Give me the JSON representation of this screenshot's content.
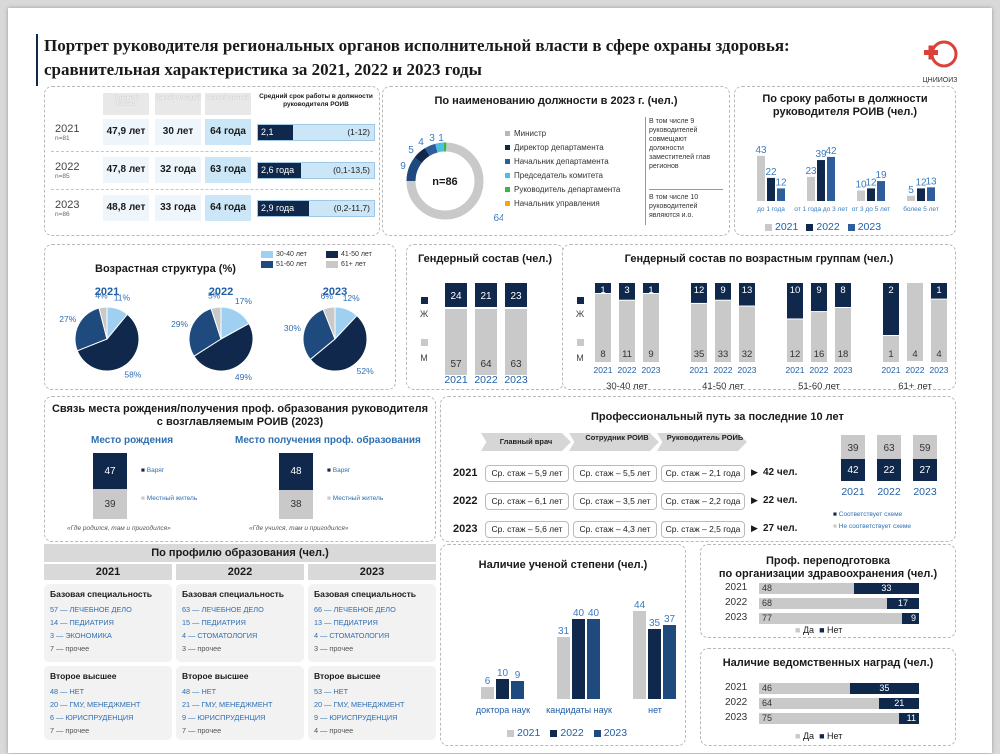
{
  "header": {
    "title_line1": "Портрет руководителя региональных органов исполнительной власти в сфере охраны здоровья:",
    "title_line2": "сравнительная характеристика за 2021, 2022 и 2023 годы",
    "logo_text": "ЦНИИОИЗ"
  },
  "summary": {
    "col_headers": [
      "Средний возраст",
      "Самый молодой",
      "Самый зрелый",
      "Средний срок работы в должности руководителя РОИВ"
    ],
    "rows": [
      {
        "year": "2021",
        "n": "n=81",
        "avg": "47,9 лет",
        "young": "30 лет",
        "old": "64 года",
        "tenure": "2,1 года",
        "range": "(1-12)",
        "tenure_frac": 0.3
      },
      {
        "year": "2022",
        "n": "n=85",
        "avg": "47,8 лет",
        "young": "32 года",
        "old": "63 года",
        "tenure": "2,6 года",
        "range": "(0,1-13,5)",
        "tenure_frac": 0.37
      },
      {
        "year": "2023",
        "n": "n=86",
        "avg": "48,8 лет",
        "young": "33 года",
        "old": "64 года",
        "tenure": "2,9 года",
        "range": "(0,2-11,7)",
        "tenure_frac": 0.44
      }
    ]
  },
  "position": {
    "title": "По наименованию должности в 2023 г. (чел.)",
    "center": "n=86",
    "labels": [
      "1",
      "3",
      "4",
      "5",
      "9",
      "64"
    ],
    "legend": [
      "Министр",
      "Директор департамента",
      "Начальник департамента",
      "Председатель комитета",
      "Руководитель департамента",
      "Начальник управления"
    ],
    "colors": [
      "#b7b7b7",
      "#10284b",
      "#2e5d9b",
      "#4cc0e0",
      "#39b54a",
      "#f2a900"
    ],
    "note1": "В том числе 9 руководителей совмещают должности заместителей глав регионов",
    "note2": "В том числе 10 руководителей являются и.о."
  },
  "tenure": {
    "title": "По сроку работы в должности руководителя РОИВ (чел.)",
    "legend": [
      "2021",
      "2022",
      "2023"
    ]
  },
  "age": {
    "title": "Возрастная структура (%)",
    "legend": [
      "30-40 лет",
      "41-50 лет",
      "51-60 лет",
      "61+ лет"
    ],
    "years": [
      "2021",
      "2022",
      "2023"
    ]
  },
  "gender": {
    "title": "Гендерный состав (чел.)",
    "f": "Ж",
    "m": "М"
  },
  "gender_age": {
    "title": "Гендерный состав по возрастным группам (чел.)",
    "groups": [
      "30-40 лет",
      "41-50 лет",
      "51-60 лет",
      "61+ лет"
    ]
  },
  "birth": {
    "title1": "Связь места рождения/получения проф. образования руководителя",
    "title2": "с возглавляемым РОИВ (2023)",
    "sub1": "Место рождения",
    "sub2": "Место получения проф. образования",
    "varyag": "Варяг",
    "local": "Местный житель",
    "note1": "«Где родился, там и пригодился»",
    "note2": "«Где учился, там и пригодился»",
    "a_v": "47",
    "a_l": "39",
    "b_v": "48",
    "b_l": "38"
  },
  "path": {
    "title": "Профессиональный путь за последние 10 лет",
    "steps": [
      "Главный врач",
      "Сотрудник РОИВ",
      "Руководитель РОИВ"
    ],
    "rows": [
      {
        "year": "2021",
        "c": [
          "Ср. стаж – 5,9 лет",
          "Ср. стаж – 5,5 лет",
          "Ср. стаж – 2,1 года"
        ],
        "n": "42 чел."
      },
      {
        "year": "2022",
        "c": [
          "Ср. стаж – 6,1 лет",
          "Ср. стаж – 3,5 лет",
          "Ср. стаж – 2,2 года"
        ],
        "n": "22 чел."
      },
      {
        "year": "2023",
        "c": [
          "Ср. стаж – 5,6 лет",
          "Ср. стаж – 4,3 лет",
          "Ср. стаж – 2,5 года"
        ],
        "n": "27 чел."
      }
    ],
    "match": "Соответствует схеме",
    "nomatch": "Не соответствует схеме"
  },
  "edu": {
    "title": "По профилю образования (чел.)",
    "cols": [
      {
        "year": "2021",
        "base_h": "Базовая специальность",
        "base": [
          "57 — ЛЕЧЕБНОЕ ДЕЛО",
          "14 — ПЕДИАТРИЯ",
          "3 — ЭКОНОМИКА"
        ],
        "base_o": "7 — прочее",
        "sec_h": "Второе высшее",
        "sec": [
          "48 — НЕТ",
          "20 — ГМУ, МЕНЕДЖМЕНТ",
          "6 — ЮРИСПРУДЕНЦИЯ"
        ],
        "sec_o": "7 — прочее"
      },
      {
        "year": "2022",
        "base_h": "Базовая специальность",
        "base": [
          "63 — ЛЕЧЕБНОЕ ДЕЛО",
          "15 — ПЕДИАТРИЯ",
          "4 — СТОМАТОЛОГИЯ"
        ],
        "base_o": "3 — прочее",
        "sec_h": "Второе высшее",
        "sec": [
          "48 — НЕТ",
          "21 — ГМУ, МЕНЕДЖМЕНТ",
          "9 — ЮРИСПРУДЕНЦИЯ"
        ],
        "sec_o": "7 — прочее"
      },
      {
        "year": "2023",
        "base_h": "Базовая специальность",
        "base": [
          "66 — ЛЕЧЕБНОЕ ДЕЛО",
          "13 — ПЕДИАТРИЯ",
          "4 — СТОМАТОЛОГИЯ"
        ],
        "base_o": "3 — прочее",
        "sec_h": "Второе высшее",
        "sec": [
          "53 — НЕТ",
          "20 — ГМУ, МЕНЕДЖМЕНТ",
          "9 — ЮРИСПРУДЕНЦИЯ"
        ],
        "sec_o": "4 — прочее"
      }
    ]
  },
  "degree": {
    "title": "Наличие ученой степени (чел.)",
    "legend": [
      "2021",
      "2022",
      "2023"
    ]
  },
  "retrain": {
    "title1": "Проф. переподготовка",
    "title2": "по организации здравоохранения (чел.)",
    "yes": "Да",
    "no": "Нет"
  },
  "awards": {
    "title": "Наличие ведомственных наград (чел.)",
    "yes": "Да",
    "no": "Нет"
  },
  "chart_data": [
    {
      "type": "bar",
      "id": "tenure",
      "categories": [
        "до 1 года",
        "от 1 года до 3 лет",
        "от 3 до 5 лет",
        "более 5 лет"
      ],
      "series": [
        {
          "name": "2021",
          "values": [
            43,
            23,
            10,
            5
          ]
        },
        {
          "name": "2022",
          "values": [
            22,
            39,
            12,
            12
          ]
        },
        {
          "name": "2023",
          "values": [
            12,
            42,
            19,
            13
          ]
        }
      ],
      "colors": [
        "#c9c9c9",
        "#10284b",
        "#2e5d9b"
      ]
    },
    {
      "type": "pie",
      "id": "age",
      "series": [
        {
          "name": "2021",
          "values": [
            11,
            58,
            27,
            4
          ]
        },
        {
          "name": "2022",
          "values": [
            17,
            49,
            29,
            5
          ]
        },
        {
          "name": "2023",
          "values": [
            12,
            52,
            30,
            6
          ]
        }
      ],
      "categories": [
        "30-40 лет",
        "41-50 лет",
        "51-60 лет",
        "61+ лет"
      ],
      "colors": [
        "#9fd0f1",
        "#10284b",
        "#1f4a7d",
        "#c9c9c9"
      ]
    },
    {
      "type": "bar",
      "id": "gender",
      "categories": [
        "2021",
        "2022",
        "2023"
      ],
      "series": [
        {
          "name": "Ж",
          "values": [
            24,
            21,
            23
          ]
        },
        {
          "name": "М",
          "values": [
            57,
            64,
            63
          ]
        }
      ]
    },
    {
      "type": "bar",
      "id": "gender_age",
      "groups": [
        {
          "name": "30-40 лет",
          "categories": [
            "2021",
            "2022",
            "2023"
          ],
          "f": [
            1,
            3,
            1
          ],
          "m": [
            8,
            11,
            9
          ]
        },
        {
          "name": "41-50 лет",
          "categories": [
            "2021",
            "2022",
            "2023"
          ],
          "f": [
            12,
            9,
            13
          ],
          "m": [
            35,
            33,
            32
          ]
        },
        {
          "name": "51-60 лет",
          "categories": [
            "2021",
            "2022",
            "2023"
          ],
          "f": [
            10,
            9,
            8
          ],
          "m": [
            12,
            16,
            18
          ]
        },
        {
          "name": "61+ лет",
          "categories": [
            "2021",
            "2022",
            "2023"
          ],
          "f": [
            2,
            0,
            1
          ],
          "m": [
            1,
            4,
            4
          ]
        }
      ]
    },
    {
      "type": "bar",
      "id": "path_match",
      "categories": [
        "2021",
        "2022",
        "2023"
      ],
      "series": [
        {
          "name": "Соответствует схеме",
          "values": [
            42,
            22,
            27
          ]
        },
        {
          "name": "Не соответствует схеме",
          "values": [
            39,
            63,
            59
          ]
        }
      ]
    },
    {
      "type": "bar",
      "id": "degree",
      "categories": [
        "доктора наук",
        "кандидаты наук",
        "нет"
      ],
      "series": [
        {
          "name": "2021",
          "values": [
            6,
            31,
            44
          ]
        },
        {
          "name": "2022",
          "values": [
            10,
            40,
            35
          ]
        },
        {
          "name": "2023",
          "values": [
            9,
            40,
            37
          ]
        }
      ]
    },
    {
      "type": "bar",
      "id": "retrain",
      "categories": [
        "2021",
        "2022",
        "2023"
      ],
      "series": [
        {
          "name": "Да",
          "values": [
            48,
            68,
            77
          ]
        },
        {
          "name": "Нет",
          "values": [
            33,
            17,
            9
          ]
        }
      ]
    },
    {
      "type": "bar",
      "id": "awards",
      "categories": [
        "2021",
        "2022",
        "2023"
      ],
      "series": [
        {
          "name": "Да",
          "values": [
            46,
            64,
            75
          ]
        },
        {
          "name": "Нет",
          "values": [
            35,
            21,
            11
          ]
        }
      ]
    }
  ]
}
